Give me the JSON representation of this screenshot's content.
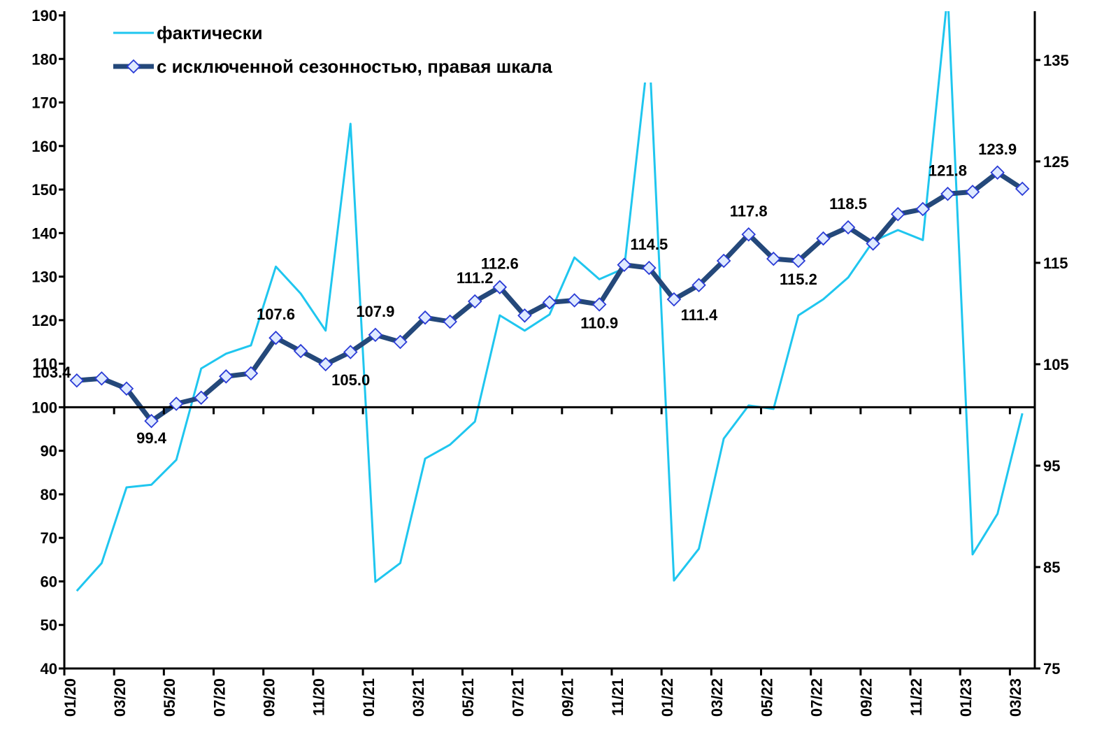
{
  "chart_data": {
    "type": "line",
    "categories": [
      "01/20",
      null,
      "03/20",
      null,
      "05/20",
      null,
      "07/20",
      null,
      "09/20",
      null,
      "11/20",
      null,
      "01/21",
      null,
      "03/21",
      null,
      "05/21",
      null,
      "07/21",
      null,
      "09/21",
      null,
      "11/21",
      null,
      "01/22",
      null,
      "03/22",
      null,
      "05/22",
      null,
      "07/22",
      null,
      "09/22",
      null,
      "11/22",
      null,
      "01/23",
      null,
      "03/23"
    ],
    "ylim": [
      40,
      190
    ],
    "yticks": [
      40,
      50,
      60,
      70,
      80,
      90,
      100,
      110,
      120,
      130,
      140,
      150,
      160,
      170,
      180,
      190
    ],
    "y2lim": [
      75,
      139.4
    ],
    "y2ticks": [
      75,
      85,
      95,
      105,
      115,
      125,
      135
    ],
    "x_axis_crosses": 100,
    "legend": "top-left",
    "series": [
      {
        "name": "фактически",
        "color": "#1fc6ef",
        "values": [
          57.8,
          64.2,
          81.6,
          82.2,
          87.9,
          108.9,
          112.3,
          114.2,
          132.3,
          126.1,
          117.6,
          165.1,
          59.9,
          64.2,
          88.2,
          91.4,
          96.7,
          121.1,
          117.6,
          121.3,
          134.4,
          129.4,
          131.9,
          183,
          60.2,
          67.5,
          92.8,
          100.4,
          99.6,
          121.1,
          124.8,
          129.8,
          138.1,
          140.7,
          138.4,
          195,
          66.2,
          75.5,
          98.6
        ]
      },
      {
        "name": "с исключенной сезонностью, правая шкала",
        "color": "#24487a",
        "axis": "y2",
        "values": [
          103.4,
          103.6,
          102.6,
          99.4,
          101.1,
          101.7,
          103.8,
          104.1,
          107.6,
          106.3,
          105.0,
          106.2,
          107.9,
          107.2,
          109.6,
          109.2,
          111.2,
          112.6,
          109.8,
          111.1,
          111.3,
          110.9,
          114.8,
          114.5,
          111.4,
          112.8,
          115.2,
          117.8,
          115.4,
          115.2,
          117.4,
          118.5,
          116.9,
          119.8,
          120.3,
          121.8,
          122.0,
          123.9,
          122.3
        ],
        "value_labels": [
          "103.4",
          null,
          null,
          "99.4",
          null,
          null,
          null,
          null,
          "107.6",
          null,
          "105.0",
          null,
          "107.9",
          null,
          null,
          null,
          "111.2",
          "112.6",
          null,
          null,
          null,
          "110.9",
          null,
          "114.5",
          "111.4",
          null,
          null,
          "117.8",
          null,
          "115.2",
          null,
          "118.5",
          null,
          null,
          null,
          "121.8",
          null,
          "123.9",
          null
        ]
      }
    ]
  }
}
